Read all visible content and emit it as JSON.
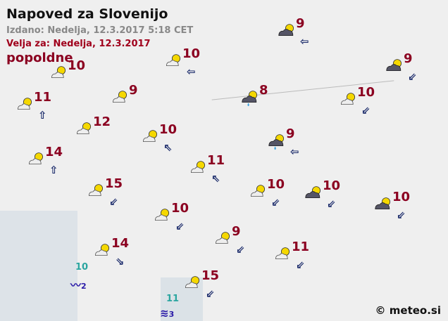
{
  "header": {
    "title": "Napoved za Slovenijo",
    "issued": "Izdano: Nedelja, 12.3.2017 5:18 CET",
    "valid": "Velja za: Nedelja, 12.3.2017",
    "period": "popoldne"
  },
  "colors": {
    "temperature": "#8b0020",
    "sea_temperature": "#2aa5a0",
    "wave": "#2a1aa8",
    "sun": "#f5d800"
  },
  "stations": [
    {
      "icon": "partly-cloudy-icon",
      "temp": "10",
      "wind": null
    },
    {
      "icon": "partly-cloudy-icon",
      "temp": "10",
      "wind": "W"
    },
    {
      "icon": "mostly-cloudy-icon",
      "temp": "9",
      "wind": "W"
    },
    {
      "icon": "mostly-cloudy-icon",
      "temp": "9",
      "wind": "SW"
    },
    {
      "icon": "partly-cloudy-icon",
      "temp": "11",
      "wind": "N"
    },
    {
      "icon": "partly-cloudy-icon",
      "temp": "9",
      "wind": null
    },
    {
      "icon": "rain-sun-icon",
      "temp": "8",
      "wind": null
    },
    {
      "icon": "partly-cloudy-icon",
      "temp": "10",
      "wind": "SW"
    },
    {
      "icon": "partly-cloudy-icon",
      "temp": "12",
      "wind": null
    },
    {
      "icon": "partly-cloudy-icon",
      "temp": "10",
      "wind": "NW"
    },
    {
      "icon": "rain-sun-icon",
      "temp": "9",
      "wind": "W"
    },
    {
      "icon": "partly-cloudy-icon",
      "temp": "14",
      "wind": "N"
    },
    {
      "icon": "partly-cloudy-icon",
      "temp": "11",
      "wind": "NW"
    },
    {
      "icon": "partly-cloudy-icon",
      "temp": "15",
      "wind": "SW"
    },
    {
      "icon": "partly-cloudy-icon",
      "temp": "10",
      "wind": "SW"
    },
    {
      "icon": "mostly-cloudy-icon",
      "temp": "10",
      "wind": "SW"
    },
    {
      "icon": "mostly-cloudy-icon",
      "temp": "10",
      "wind": "SW"
    },
    {
      "icon": "partly-cloudy-icon",
      "temp": "10",
      "wind": "SW"
    },
    {
      "icon": "partly-cloudy-icon",
      "temp": "9",
      "wind": "SW"
    },
    {
      "icon": "partly-cloudy-icon",
      "temp": "11",
      "wind": "SW"
    },
    {
      "icon": "partly-cloudy-icon",
      "temp": "14",
      "wind": "SE"
    },
    {
      "icon": "partly-cloudy-icon",
      "temp": "15",
      "wind": "SW"
    }
  ],
  "sea": [
    {
      "temp": "10",
      "wave": "2"
    },
    {
      "temp": "11",
      "wave": "3"
    }
  ],
  "copyright": "© meteo.si"
}
